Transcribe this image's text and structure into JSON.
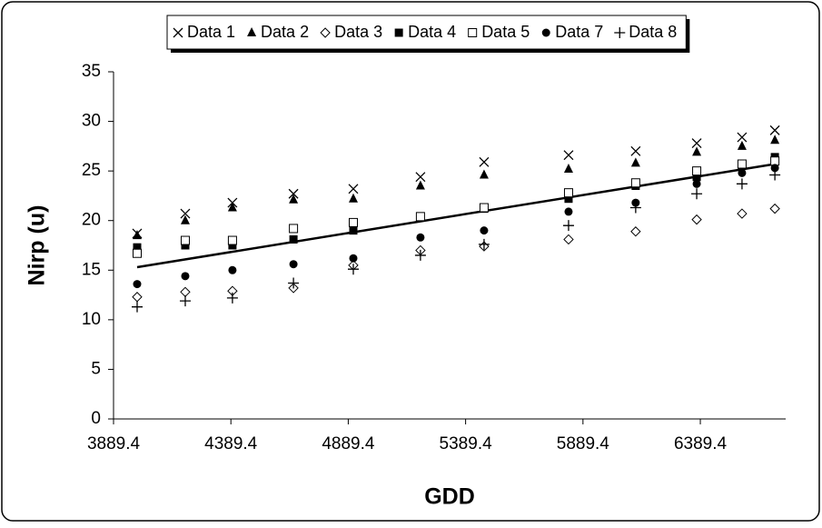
{
  "chart_data": {
    "type": "scatter",
    "x_label": "GDD",
    "y_label": "Nirp (u)",
    "x": [
      3990,
      4195,
      4396,
      4656,
      4911,
      5197,
      5468,
      5828,
      6114,
      6374,
      6567,
      6707
    ],
    "series": [
      {
        "name": "Data 1",
        "marker": "x",
        "color": "#000000",
        "values": [
          18.7,
          20.7,
          21.8,
          22.7,
          23.2,
          24.4,
          25.9,
          26.6,
          27.0,
          27.8,
          28.4,
          29.1
        ]
      },
      {
        "name": "Data 2",
        "marker": "triangle",
        "color": "#000000",
        "values": [
          18.5,
          20.0,
          21.3,
          22.1,
          22.2,
          23.5,
          24.6,
          25.2,
          25.8,
          26.9,
          27.5,
          28.1
        ]
      },
      {
        "name": "Data 3",
        "marker": "diamond-open",
        "color": "#000000",
        "values": [
          12.3,
          12.8,
          12.9,
          13.2,
          15.5,
          17.0,
          17.4,
          18.1,
          18.9,
          20.1,
          20.7,
          21.2
        ]
      },
      {
        "name": "Data 4",
        "marker": "square",
        "color": "#000000",
        "values": [
          17.3,
          17.5,
          17.5,
          18.1,
          19.0,
          20.3,
          21.2,
          22.2,
          23.5,
          24.4,
          25.6,
          26.4
        ]
      },
      {
        "name": "Data 5",
        "marker": "square-open",
        "color": "#000000",
        "values": [
          16.7,
          18.0,
          18.0,
          19.2,
          19.8,
          20.4,
          21.3,
          22.8,
          23.8,
          25.0,
          25.7,
          26.0
        ]
      },
      {
        "name": "Data 7",
        "marker": "circle",
        "color": "#000000",
        "values": [
          13.6,
          14.4,
          15.0,
          15.6,
          16.2,
          18.3,
          19.0,
          20.9,
          21.8,
          23.7,
          24.8,
          25.3
        ]
      },
      {
        "name": "Data 8",
        "marker": "plus",
        "color": "#000000",
        "values": [
          11.3,
          11.9,
          12.2,
          13.7,
          15.1,
          16.5,
          17.6,
          19.5,
          21.3,
          22.7,
          23.7,
          24.6
        ]
      }
    ],
    "trendline": {
      "x": [
        3990,
        6707
      ],
      "values": [
        15.3,
        25.7
      ],
      "color": "#000000"
    },
    "xlim": [
      3889.4,
      6753
    ],
    "xticks": [
      3889.4,
      4389.4,
      4889.4,
      5389.4,
      5889.4,
      6389.4
    ],
    "ylim": [
      0,
      35
    ],
    "yticks": [
      0,
      5,
      10,
      15,
      20,
      25,
      30,
      35
    ],
    "grid": false,
    "legend": "top"
  }
}
